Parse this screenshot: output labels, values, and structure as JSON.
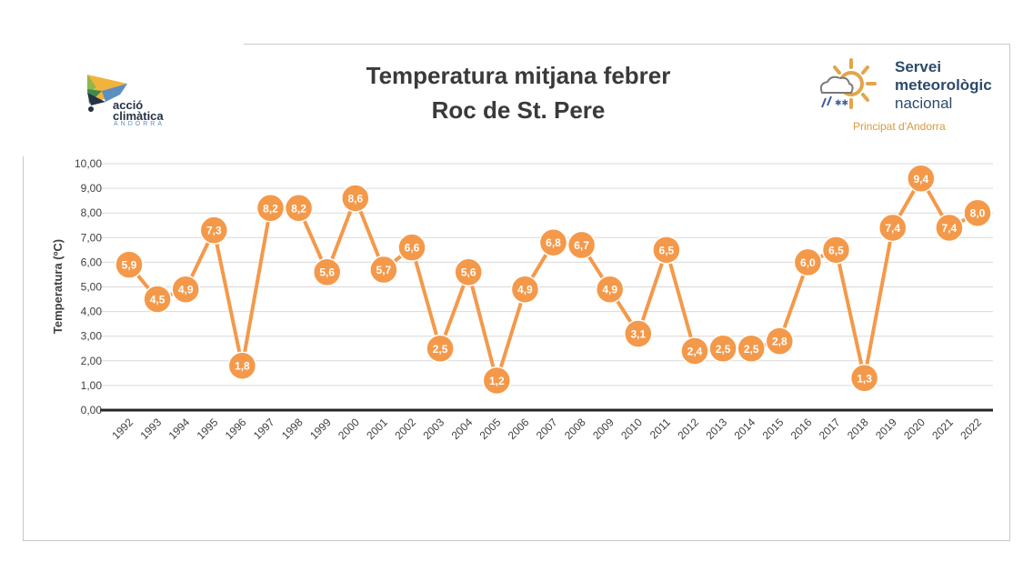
{
  "chart_data": {
    "type": "line",
    "title": [
      "Temperatura mitjana febrer",
      "Roc de St. Pere"
    ],
    "ylabel": "Temperatura (ºC)",
    "xlabel": "",
    "ylim": [
      0,
      10
    ],
    "yticks": [
      "0,00",
      "1,00",
      "2,00",
      "3,00",
      "4,00",
      "5,00",
      "6,00",
      "7,00",
      "8,00",
      "9,00",
      "10,00"
    ],
    "grid": true,
    "categories": [
      "1992",
      "1993",
      "1994",
      "1995",
      "1996",
      "1997",
      "1998",
      "1999",
      "2000",
      "2001",
      "2002",
      "2003",
      "2004",
      "2005",
      "2006",
      "2007",
      "2008",
      "2009",
      "2010",
      "2011",
      "2012",
      "2013",
      "2014",
      "2015",
      "2016",
      "2017",
      "2018",
      "2019",
      "2020",
      "2021",
      "2022"
    ],
    "values": [
      5.9,
      4.5,
      4.9,
      7.3,
      1.8,
      8.2,
      8.2,
      5.6,
      8.6,
      5.7,
      6.6,
      2.5,
      5.6,
      1.2,
      4.9,
      6.8,
      6.7,
      4.9,
      3.1,
      6.5,
      2.4,
      2.5,
      2.5,
      2.8,
      6.0,
      6.5,
      1.3,
      7.4,
      9.4,
      7.4,
      8.0
    ],
    "data_labels": [
      "5,9",
      "4,5",
      "4,9",
      "7,3",
      "1,8",
      "8,2",
      "8,2",
      "5,6",
      "8,6",
      "5,7",
      "6,6",
      "2,5",
      "5,6",
      "1,2",
      "4,9",
      "6,8",
      "6,7",
      "4,9",
      "3,1",
      "6,5",
      "2,4",
      "2,5",
      "2,5",
      "2,8",
      "6,0",
      "6,5",
      "1,3",
      "7,4",
      "9,4",
      "7,4",
      "8,0"
    ],
    "color": "#f4994a",
    "legend": "none"
  },
  "logos": {
    "left": {
      "line1": "acció",
      "line2": "climàtica",
      "line3": "ANDORRA"
    },
    "right": {
      "line1": "Servei",
      "line2": "meteorològic",
      "line3": "nacional",
      "sub": "Principat d'Andorra"
    }
  }
}
